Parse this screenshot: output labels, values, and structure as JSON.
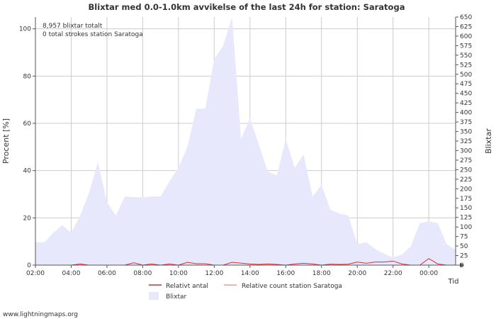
{
  "chart_data": {
    "type": "area",
    "title": "Blixtar med 0.0-1.0km avvikelse of the last 24h for station: Saratoga",
    "ylabel_left": "Procent   [%]",
    "ylabel_right": "Blixtar",
    "xlabel": "Tid",
    "ylim_left": [
      0,
      105
    ],
    "ylim_right": [
      0,
      650
    ],
    "yticks_left": [
      "0",
      "20",
      "40",
      "60",
      "80",
      "100"
    ],
    "yticks_right": [
      "0",
      "25",
      "50",
      "75",
      "100",
      "125",
      "150",
      "175",
      "200",
      "225",
      "250",
      "275",
      "300",
      "325",
      "350",
      "375",
      "400",
      "425",
      "450",
      "475",
      "500",
      "525",
      "550",
      "575",
      "600",
      "625",
      "650"
    ],
    "xticks": [
      "02:00",
      "04:00",
      "06:00",
      "08:00",
      "10:00",
      "12:00",
      "14:00",
      "16:00",
      "18:00",
      "20:00",
      "22:00",
      "00:00"
    ],
    "annotations": [
      "8,957 blixtar totalt",
      "0 total strokes station Saratoga"
    ],
    "legend": [
      "Relativt antal",
      "Relative count station Saratoga",
      "Blixtar"
    ],
    "colors": {
      "area": "#e8e8fc",
      "relativt": "#cc3333",
      "station": "#ee9999",
      "grid": "#cccccc",
      "axis": "#555555"
    },
    "series": [
      {
        "name": "Blixtar",
        "x": [
          0,
          0.5,
          1,
          1.5,
          2,
          2.5,
          3,
          3.5,
          4,
          4.5,
          5,
          5.5,
          6,
          6.5,
          7,
          7.5,
          8,
          8.5,
          9,
          9.5,
          10,
          10.5,
          11,
          11.5,
          12,
          12.5,
          13,
          13.5,
          14,
          14.5,
          15,
          15.5,
          16,
          16.5,
          17,
          17.5,
          18,
          18.5,
          19,
          19.5,
          20,
          20.5,
          21,
          21.5,
          22,
          22.5,
          23,
          23.5
        ],
        "values": [
          60,
          60,
          85,
          105,
          85,
          130,
          190,
          270,
          165,
          130,
          180,
          178,
          178,
          180,
          180,
          220,
          255,
          310,
          410,
          410,
          540,
          575,
          650,
          330,
          385,
          315,
          245,
          235,
          330,
          255,
          290,
          180,
          210,
          145,
          135,
          130,
          55,
          60,
          42,
          30,
          20,
          28,
          50,
          110,
          115,
          110,
          55,
          40
        ]
      },
      {
        "name": "Relativt antal",
        "x": [
          0,
          2,
          2.5,
          3,
          3.5,
          5,
          5.5,
          6,
          6.5,
          7,
          7.5,
          8,
          8.5,
          9,
          9.5,
          10,
          10.5,
          11,
          12,
          12.5,
          13,
          13.5,
          14,
          14.5,
          15,
          15.5,
          16,
          16.5,
          17,
          17.5,
          18,
          18.5,
          19,
          19.5,
          20,
          20.5,
          21,
          21.5,
          22,
          22.5,
          23
        ],
        "values": [
          0,
          0,
          0.5,
          0,
          0,
          0,
          1,
          0,
          0.5,
          0,
          0.5,
          0,
          1.2,
          0.6,
          0.6,
          0,
          0,
          1.2,
          0.5,
          0.3,
          0.5,
          0.3,
          0,
          0.5,
          0.8,
          0.5,
          0,
          0.4,
          0.3,
          0.4,
          1.3,
          0.8,
          1.3,
          1.3,
          1.7,
          0.5,
          0,
          0,
          2.8,
          0.5,
          0
        ]
      },
      {
        "name": "Relative count station Saratoga",
        "x": [
          0,
          23.5
        ],
        "values": [
          0,
          0
        ]
      }
    ]
  },
  "footer": "www.lightningmaps.org"
}
